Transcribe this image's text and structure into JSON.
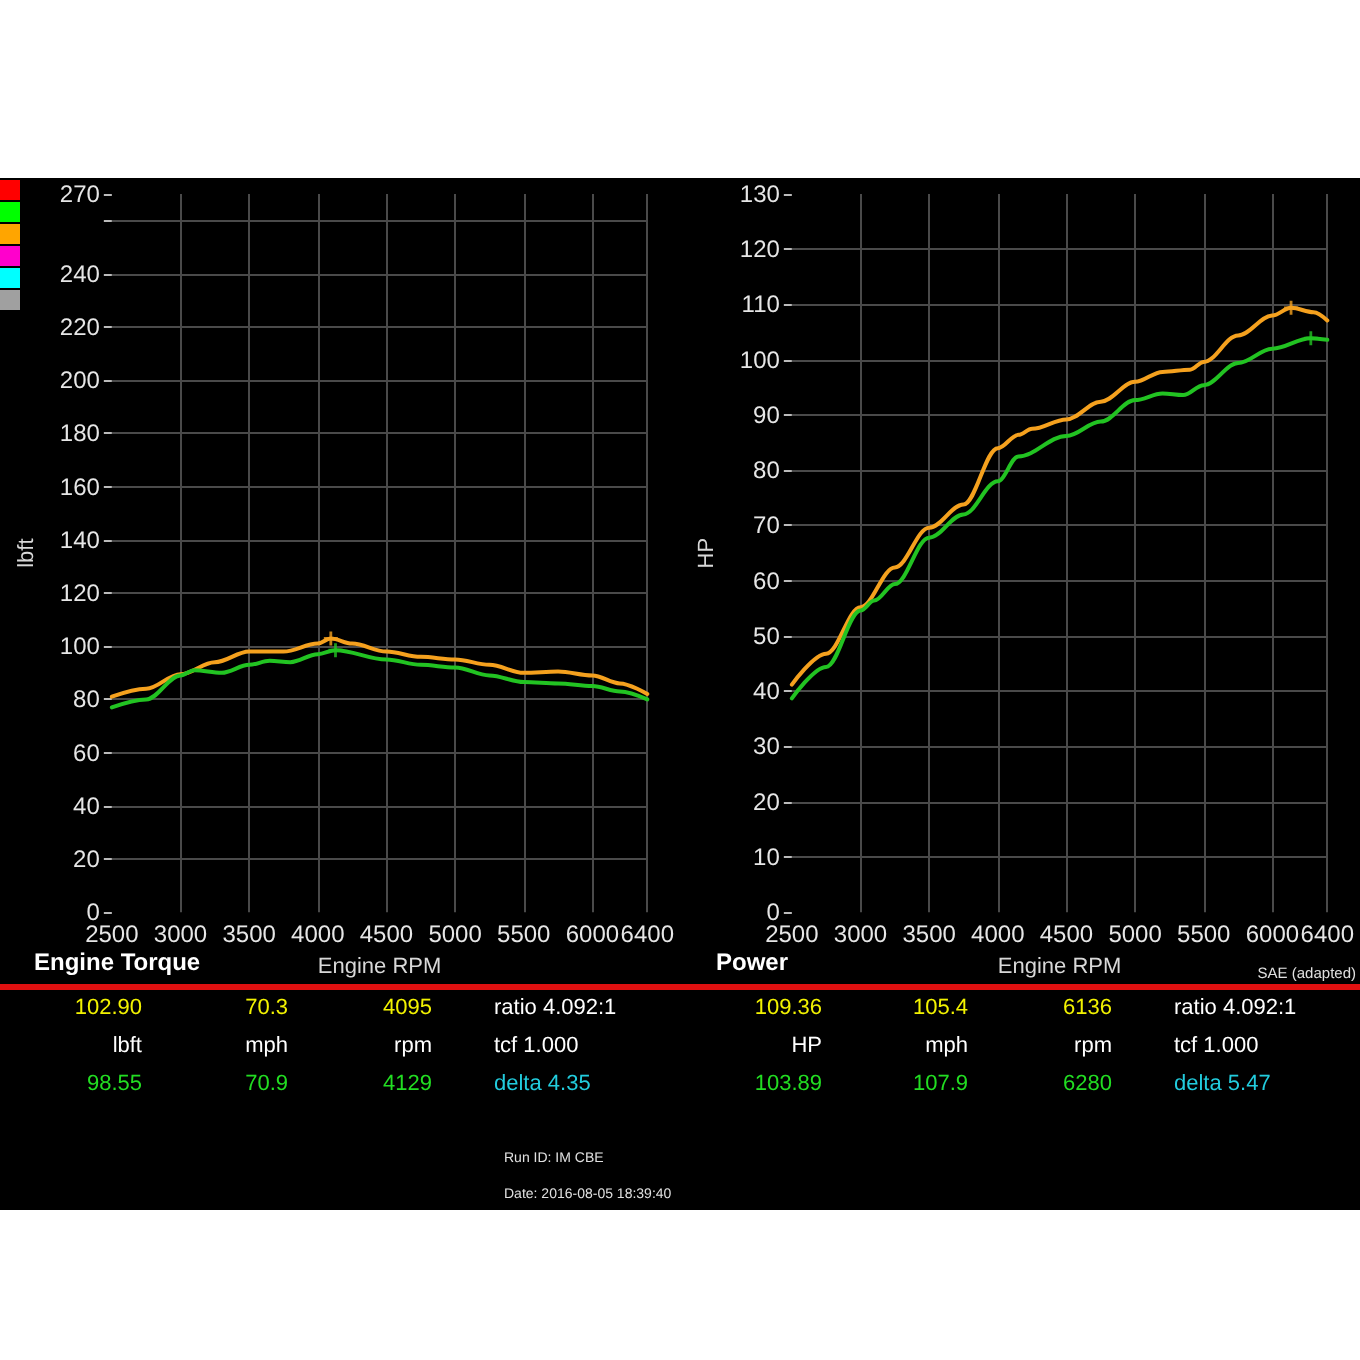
{
  "chart_data": [
    {
      "type": "line",
      "title": "Engine Torque",
      "xlabel": "Engine RPM",
      "ylabel": "lbft",
      "xlim": [
        2500,
        6400
      ],
      "xticks": [
        2500,
        3000,
        3500,
        4000,
        4500,
        5000,
        5500,
        6000,
        6400
      ],
      "ylim": [
        0,
        270
      ],
      "yticks": [
        0,
        20,
        40,
        60,
        80,
        100,
        120,
        140,
        160,
        180,
        200,
        220,
        240,
        {
          "value": 260,
          "label": null
        },
        270
      ],
      "grid": true,
      "marker": "none",
      "line_style": "solid",
      "series": [
        {
          "color": "#f5a11e",
          "x": [
            2500,
            2750,
            3000,
            3250,
            3500,
            3750,
            4000,
            4095,
            4250,
            4500,
            4750,
            5000,
            5250,
            5500,
            5750,
            6000,
            6200,
            6400
          ],
          "values": [
            81,
            84,
            89.5,
            94,
            98,
            98,
            101,
            102.9,
            101,
            98,
            96,
            95,
            93,
            90,
            90.5,
            89,
            86,
            82
          ]
        },
        {
          "color": "#22c322",
          "x": [
            2500,
            2750,
            3000,
            3100,
            3300,
            3500,
            3650,
            3800,
            4000,
            4129,
            4500,
            4750,
            5000,
            5250,
            5500,
            5750,
            6000,
            6200,
            6400
          ],
          "values": [
            77,
            80,
            89,
            91,
            90,
            93,
            94.5,
            94,
            97,
            98.5,
            95,
            93,
            92,
            89,
            86.5,
            86,
            85,
            83,
            80
          ]
        },
        {
          "type": "scatter",
          "marker": "cross",
          "color": "#f5a11e",
          "x": [
            4095
          ],
          "values": [
            102.9
          ]
        },
        {
          "type": "scatter",
          "marker": "cross",
          "color": "#22c322",
          "x": [
            4129
          ],
          "values": [
            98.5
          ]
        }
      ],
      "annotations": [
        "102.90",
        "70.3",
        "4095",
        "ratio 4.092:1",
        "lbft",
        "mph",
        "rpm",
        "tcf 1.000",
        "98.55",
        "70.9",
        "4129",
        "delta 4.35",
        "Run ID: IM CBE",
        "Date: 2016-08-05 18:39:40"
      ]
    },
    {
      "type": "line",
      "title": "Power",
      "xlabel": "Engine RPM",
      "ylabel": "HP",
      "xlim": [
        2500,
        6400
      ],
      "xticks": [
        2500,
        3000,
        3500,
        4000,
        4500,
        5000,
        5500,
        6000,
        6400
      ],
      "ylim": [
        0,
        130
      ],
      "yticks": [
        0,
        10,
        20,
        30,
        40,
        50,
        60,
        70,
        80,
        90,
        100,
        110,
        120,
        130
      ],
      "grid": true,
      "marker": "none",
      "line_style": "solid",
      "series": [
        {
          "color": "#f5a11e",
          "x": [
            2500,
            2750,
            3000,
            3250,
            3500,
            3750,
            4000,
            4150,
            4250,
            4500,
            4750,
            5000,
            5200,
            5400,
            5500,
            5750,
            6000,
            6136,
            6300,
            6400
          ],
          "values": [
            41.2,
            46.8,
            55.2,
            62.4,
            69.6,
            73.8,
            84,
            86.4,
            87.5,
            89.2,
            92.4,
            96,
            97.8,
            98.2,
            99.6,
            104.4,
            108,
            109.4,
            108.6,
            107.1
          ]
        },
        {
          "color": "#22c322",
          "x": [
            2500,
            2750,
            3000,
            3100,
            3250,
            3500,
            3750,
            4000,
            4150,
            4500,
            4750,
            5000,
            5200,
            5350,
            5500,
            5750,
            6000,
            6280,
            6400
          ],
          "values": [
            38.7,
            44.4,
            54.6,
            56.4,
            59.4,
            67.8,
            72,
            78,
            82.5,
            86.2,
            88.8,
            92.7,
            93.9,
            93.6,
            95.4,
            99.4,
            102,
            103.9,
            103.6
          ]
        },
        {
          "type": "scatter",
          "marker": "cross",
          "color": "#f5a11e",
          "x": [
            6136
          ],
          "values": [
            109.4
          ]
        },
        {
          "type": "scatter",
          "marker": "cross",
          "color": "#22c322",
          "x": [
            6280
          ],
          "values": [
            103.9
          ]
        }
      ],
      "annotations": [
        "109.36",
        "105.4",
        "6136",
        "ratio 4.092:1",
        "HP",
        "mph",
        "rpm",
        "tcf 1.000",
        "103.89",
        "107.9",
        "6280",
        "delta 5.47",
        "SAE (adapted)"
      ]
    }
  ]
}
